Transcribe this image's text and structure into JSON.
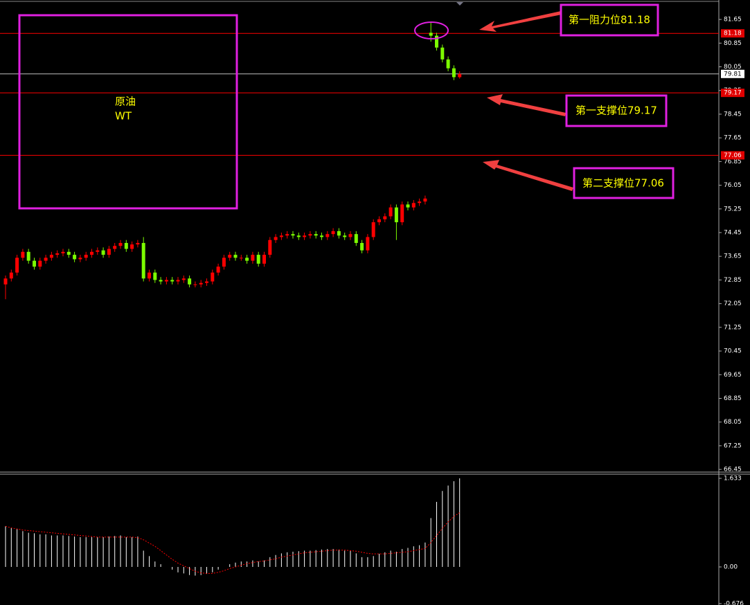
{
  "chart_data": [
    {
      "type": "candlestick",
      "open": [
        72.7,
        72.9,
        73.1,
        73.6,
        73.8,
        73.5,
        73.3,
        73.5,
        73.6,
        73.7,
        73.75,
        73.8,
        73.7,
        73.55,
        73.6,
        73.7,
        73.8,
        73.85,
        73.7,
        73.9,
        74.0,
        74.1,
        73.9,
        74.05,
        74.1,
        72.9,
        73.1,
        72.85,
        72.8,
        72.85,
        72.8,
        72.85,
        72.9,
        72.7,
        72.7,
        72.75,
        72.8,
        73.1,
        73.3,
        73.6,
        73.7,
        73.6,
        73.6,
        73.5,
        73.7,
        73.4,
        73.7,
        74.2,
        74.3,
        74.35,
        74.4,
        74.35,
        74.3,
        74.35,
        74.4,
        74.35,
        74.3,
        74.4,
        74.5,
        74.35,
        74.3,
        74.4,
        74.1,
        73.85,
        74.3,
        74.8,
        74.9,
        75.0,
        75.3,
        74.8,
        75.4,
        75.3,
        75.45,
        75.5,
        81.2,
        81.1,
        80.7,
        80.3,
        80.0,
        79.7
      ],
      "high": [
        73.0,
        73.2,
        73.7,
        73.9,
        73.9,
        73.6,
        73.6,
        73.7,
        73.8,
        73.85,
        73.9,
        73.9,
        73.8,
        73.7,
        73.8,
        73.9,
        73.95,
        73.95,
        74.0,
        74.1,
        74.2,
        74.2,
        74.15,
        74.2,
        74.3,
        73.2,
        73.2,
        72.95,
        72.95,
        72.95,
        72.95,
        73.0,
        73.0,
        72.8,
        72.85,
        72.9,
        73.2,
        73.4,
        73.7,
        73.8,
        73.8,
        73.7,
        73.7,
        73.8,
        73.8,
        73.8,
        74.3,
        74.4,
        74.45,
        74.5,
        74.5,
        74.45,
        74.45,
        74.5,
        74.5,
        74.45,
        74.5,
        74.6,
        74.6,
        74.45,
        74.5,
        74.5,
        74.2,
        74.4,
        74.9,
        75.0,
        75.1,
        75.4,
        75.4,
        75.5,
        75.5,
        75.55,
        75.6,
        75.7,
        81.55,
        81.2,
        80.8,
        80.4,
        80.1,
        79.9
      ],
      "low": [
        72.2,
        72.8,
        73.0,
        73.5,
        73.4,
        73.2,
        73.2,
        73.4,
        73.5,
        73.6,
        73.65,
        73.6,
        73.45,
        73.45,
        73.5,
        73.6,
        73.7,
        73.6,
        73.6,
        73.8,
        73.9,
        73.8,
        73.8,
        73.95,
        72.8,
        72.8,
        72.75,
        72.7,
        72.7,
        72.7,
        72.7,
        72.75,
        72.6,
        72.6,
        72.6,
        72.65,
        72.7,
        73.0,
        73.2,
        73.5,
        73.5,
        73.5,
        73.4,
        73.4,
        73.3,
        73.3,
        73.6,
        74.1,
        74.2,
        74.25,
        74.25,
        74.2,
        74.2,
        74.25,
        74.25,
        74.2,
        74.2,
        74.3,
        74.25,
        74.2,
        74.2,
        74.0,
        73.75,
        73.75,
        74.2,
        74.7,
        74.8,
        74.9,
        74.2,
        74.7,
        75.2,
        75.2,
        75.35,
        75.4,
        80.9,
        80.6,
        80.2,
        79.9,
        79.6,
        79.65
      ],
      "close": [
        72.9,
        73.1,
        73.6,
        73.8,
        73.5,
        73.3,
        73.5,
        73.6,
        73.7,
        73.75,
        73.8,
        73.7,
        73.55,
        73.6,
        73.7,
        73.8,
        73.85,
        73.7,
        73.9,
        74.0,
        74.1,
        73.9,
        74.05,
        74.1,
        72.9,
        73.1,
        72.85,
        72.8,
        72.85,
        72.8,
        72.85,
        72.9,
        72.7,
        72.7,
        72.75,
        72.8,
        73.1,
        73.3,
        73.6,
        73.7,
        73.6,
        73.6,
        73.5,
        73.7,
        73.4,
        73.7,
        74.2,
        74.3,
        74.35,
        74.4,
        74.35,
        74.3,
        74.35,
        74.4,
        74.35,
        74.3,
        74.4,
        74.5,
        74.35,
        74.3,
        74.4,
        74.1,
        73.85,
        74.3,
        74.8,
        74.9,
        75.0,
        75.3,
        74.8,
        75.4,
        75.3,
        75.45,
        75.5,
        75.6,
        81.1,
        80.7,
        80.3,
        80.0,
        79.7,
        79.81
      ],
      "up_color": "#ff0000",
      "down_color": "#7cfc00",
      "ylim": [
        66.36,
        82.26
      ],
      "yticks": [
        81.65,
        80.85,
        80.05,
        79.25,
        78.45,
        77.65,
        76.85,
        76.05,
        75.25,
        74.45,
        73.65,
        72.85,
        72.05,
        71.25,
        70.45,
        69.65,
        68.85,
        68.05,
        67.25,
        66.45
      ],
      "levels": [
        {
          "value": 81.18,
          "color": "#ff0000"
        },
        {
          "value": 79.81,
          "color": "#c0c0c0"
        },
        {
          "value": 79.17,
          "color": "#ff0000"
        },
        {
          "value": 77.06,
          "color": "#ff0000"
        }
      ],
      "label_box": [
        "原油",
        "WT"
      ],
      "annotations": [
        "第一阻力位81.18",
        "第一支撑位79.17",
        "第二支撑位77.06"
      ]
    },
    {
      "type": "macd",
      "values": [
        0.75,
        0.72,
        0.7,
        0.66,
        0.63,
        0.62,
        0.6,
        0.6,
        0.58,
        0.58,
        0.58,
        0.57,
        0.56,
        0.55,
        0.55,
        0.55,
        0.55,
        0.55,
        0.56,
        0.57,
        0.58,
        0.55,
        0.55,
        0.56,
        0.3,
        0.2,
        0.1,
        0.05,
        0.0,
        -0.05,
        -0.1,
        -0.12,
        -0.15,
        -0.16,
        -0.15,
        -0.13,
        -0.1,
        -0.05,
        0.0,
        0.05,
        0.08,
        0.1,
        0.1,
        0.12,
        0.1,
        0.12,
        0.18,
        0.22,
        0.25,
        0.27,
        0.28,
        0.29,
        0.3,
        0.3,
        0.31,
        0.32,
        0.33,
        0.33,
        0.32,
        0.3,
        0.3,
        0.25,
        0.18,
        0.18,
        0.2,
        0.24,
        0.27,
        0.3,
        0.28,
        0.33,
        0.35,
        0.38,
        0.4,
        0.45,
        0.9,
        1.2,
        1.4,
        1.5,
        1.58,
        1.633
      ],
      "signal": [
        0.75,
        0.72,
        0.7,
        0.68,
        0.67,
        0.66,
        0.65,
        0.64,
        0.63,
        0.62,
        0.61,
        0.6,
        0.59,
        0.58,
        0.57,
        0.56,
        0.55,
        0.55,
        0.55,
        0.55,
        0.55,
        0.55,
        0.55,
        0.54,
        0.5,
        0.44,
        0.38,
        0.3,
        0.22,
        0.14,
        0.07,
        0.02,
        -0.03,
        -0.08,
        -0.11,
        -0.12,
        -0.12,
        -0.1,
        -0.07,
        -0.03,
        0.0,
        0.03,
        0.06,
        0.08,
        0.1,
        0.11,
        0.13,
        0.15,
        0.18,
        0.2,
        0.22,
        0.24,
        0.26,
        0.27,
        0.28,
        0.29,
        0.3,
        0.31,
        0.31,
        0.31,
        0.3,
        0.29,
        0.27,
        0.25,
        0.24,
        0.24,
        0.24,
        0.25,
        0.26,
        0.27,
        0.28,
        0.3,
        0.32,
        0.34,
        0.45,
        0.58,
        0.71,
        0.83,
        0.93,
        1.0
      ],
      "color": "#ffffff",
      "signal_color": "#ff0000",
      "ylim": [
        -0.702,
        1.697
      ],
      "yticks": [
        1.633,
        {
          "value": 0,
          "label": "0.00"
        },
        -0.676
      ]
    }
  ]
}
